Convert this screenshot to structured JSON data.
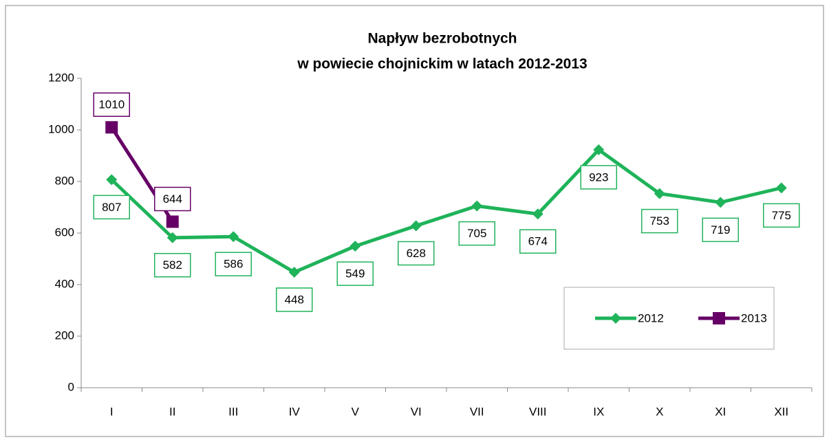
{
  "chart_data": {
    "type": "line",
    "title": [
      "Napływ bezrobotnych",
      "w powiecie chojnickim w latach 2012-2013"
    ],
    "categories": [
      "I",
      "II",
      "III",
      "IV",
      "V",
      "VI",
      "VII",
      "VIII",
      "IX",
      "X",
      "XI",
      "XII"
    ],
    "series": [
      {
        "name": "2012",
        "color": "#1fb35a",
        "marker": "diamond",
        "values": [
          807,
          582,
          586,
          448,
          549,
          628,
          705,
          674,
          923,
          753,
          719,
          775
        ]
      },
      {
        "name": "2013",
        "color": "#660066",
        "marker": "square",
        "values": [
          1010,
          644,
          null,
          null,
          null,
          null,
          null,
          null,
          null,
          null,
          null,
          null
        ]
      }
    ],
    "ylim": [
      0,
      1200
    ],
    "yticks": [
      0,
      200,
      400,
      600,
      800,
      1000,
      1200
    ],
    "grid": false,
    "legend": "lower right"
  }
}
